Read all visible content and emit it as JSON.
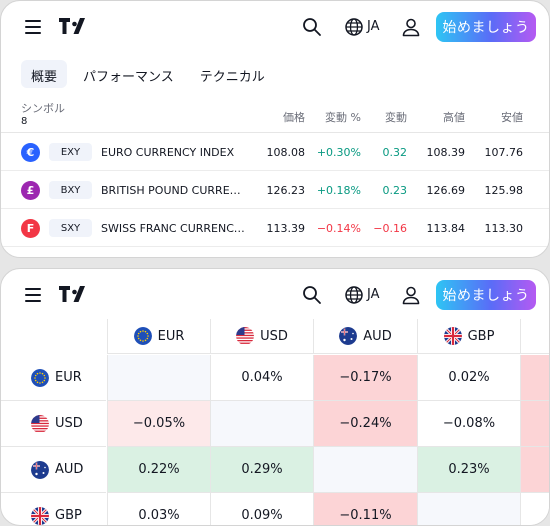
{
  "header": {
    "language": "JA",
    "cta_label": "始めましょう"
  },
  "tabs": [
    {
      "label": "概要",
      "active": true
    },
    {
      "label": "パフォーマンス",
      "active": false
    },
    {
      "label": "テクニカル",
      "active": false
    }
  ],
  "table": {
    "symbol_header": "シンボル",
    "symbol_count": "8",
    "columns": [
      "価格",
      "変動 %",
      "変動",
      "高値",
      "安値"
    ],
    "rows": [
      {
        "icon": "€",
        "icon_color": "#2962ff",
        "ticker": "EXY",
        "name": "EURO CURRENCY INDEX",
        "price": "108.08",
        "change_pct": "+0.30%",
        "change": "0.32",
        "high": "108.39",
        "low": "107.76",
        "dir": "pos"
      },
      {
        "icon": "£",
        "icon_color": "#9c27b0",
        "ticker": "BXY",
        "name": "BRITISH POUND CURRENC…",
        "price": "126.23",
        "change_pct": "+0.18%",
        "change": "0.23",
        "high": "126.69",
        "low": "125.98",
        "dir": "pos"
      },
      {
        "icon": "F",
        "icon_color": "#f23645",
        "ticker": "SXY",
        "name": "SWISS FRANC CURRENCY I…",
        "price": "113.39",
        "change_pct": "−0.14%",
        "change": "−0.16",
        "high": "113.84",
        "low": "113.30",
        "dir": "neg"
      }
    ]
  },
  "heatmap": {
    "columns": [
      "EUR",
      "USD",
      "AUD",
      "GBP"
    ],
    "rows": [
      {
        "label": "EUR",
        "cells": [
          "",
          "0.04%",
          "−0.17%",
          "0.02%"
        ],
        "tones": [
          "empty",
          "none",
          "neg",
          "none"
        ]
      },
      {
        "label": "USD",
        "cells": [
          "−0.05%",
          "",
          "−0.24%",
          "−0.08%"
        ],
        "tones": [
          "neglight",
          "empty",
          "neg",
          "none"
        ]
      },
      {
        "label": "AUD",
        "cells": [
          "0.22%",
          "0.29%",
          "",
          "0.23%"
        ],
        "tones": [
          "pos",
          "pos",
          "empty",
          "pos"
        ]
      },
      {
        "label": "GBP",
        "cells": [
          "0.03%",
          "0.09%",
          "−0.11%",
          ""
        ],
        "tones": [
          "none",
          "none",
          "neg",
          "empty"
        ]
      }
    ]
  },
  "colors": {
    "positive": "#089981",
    "negative": "#f23645",
    "heat_pos": "#daf1e3",
    "heat_neg": "#fcd4d6",
    "heat_neglight": "#fde9ea",
    "heat_empty": "#f6f8fc"
  }
}
